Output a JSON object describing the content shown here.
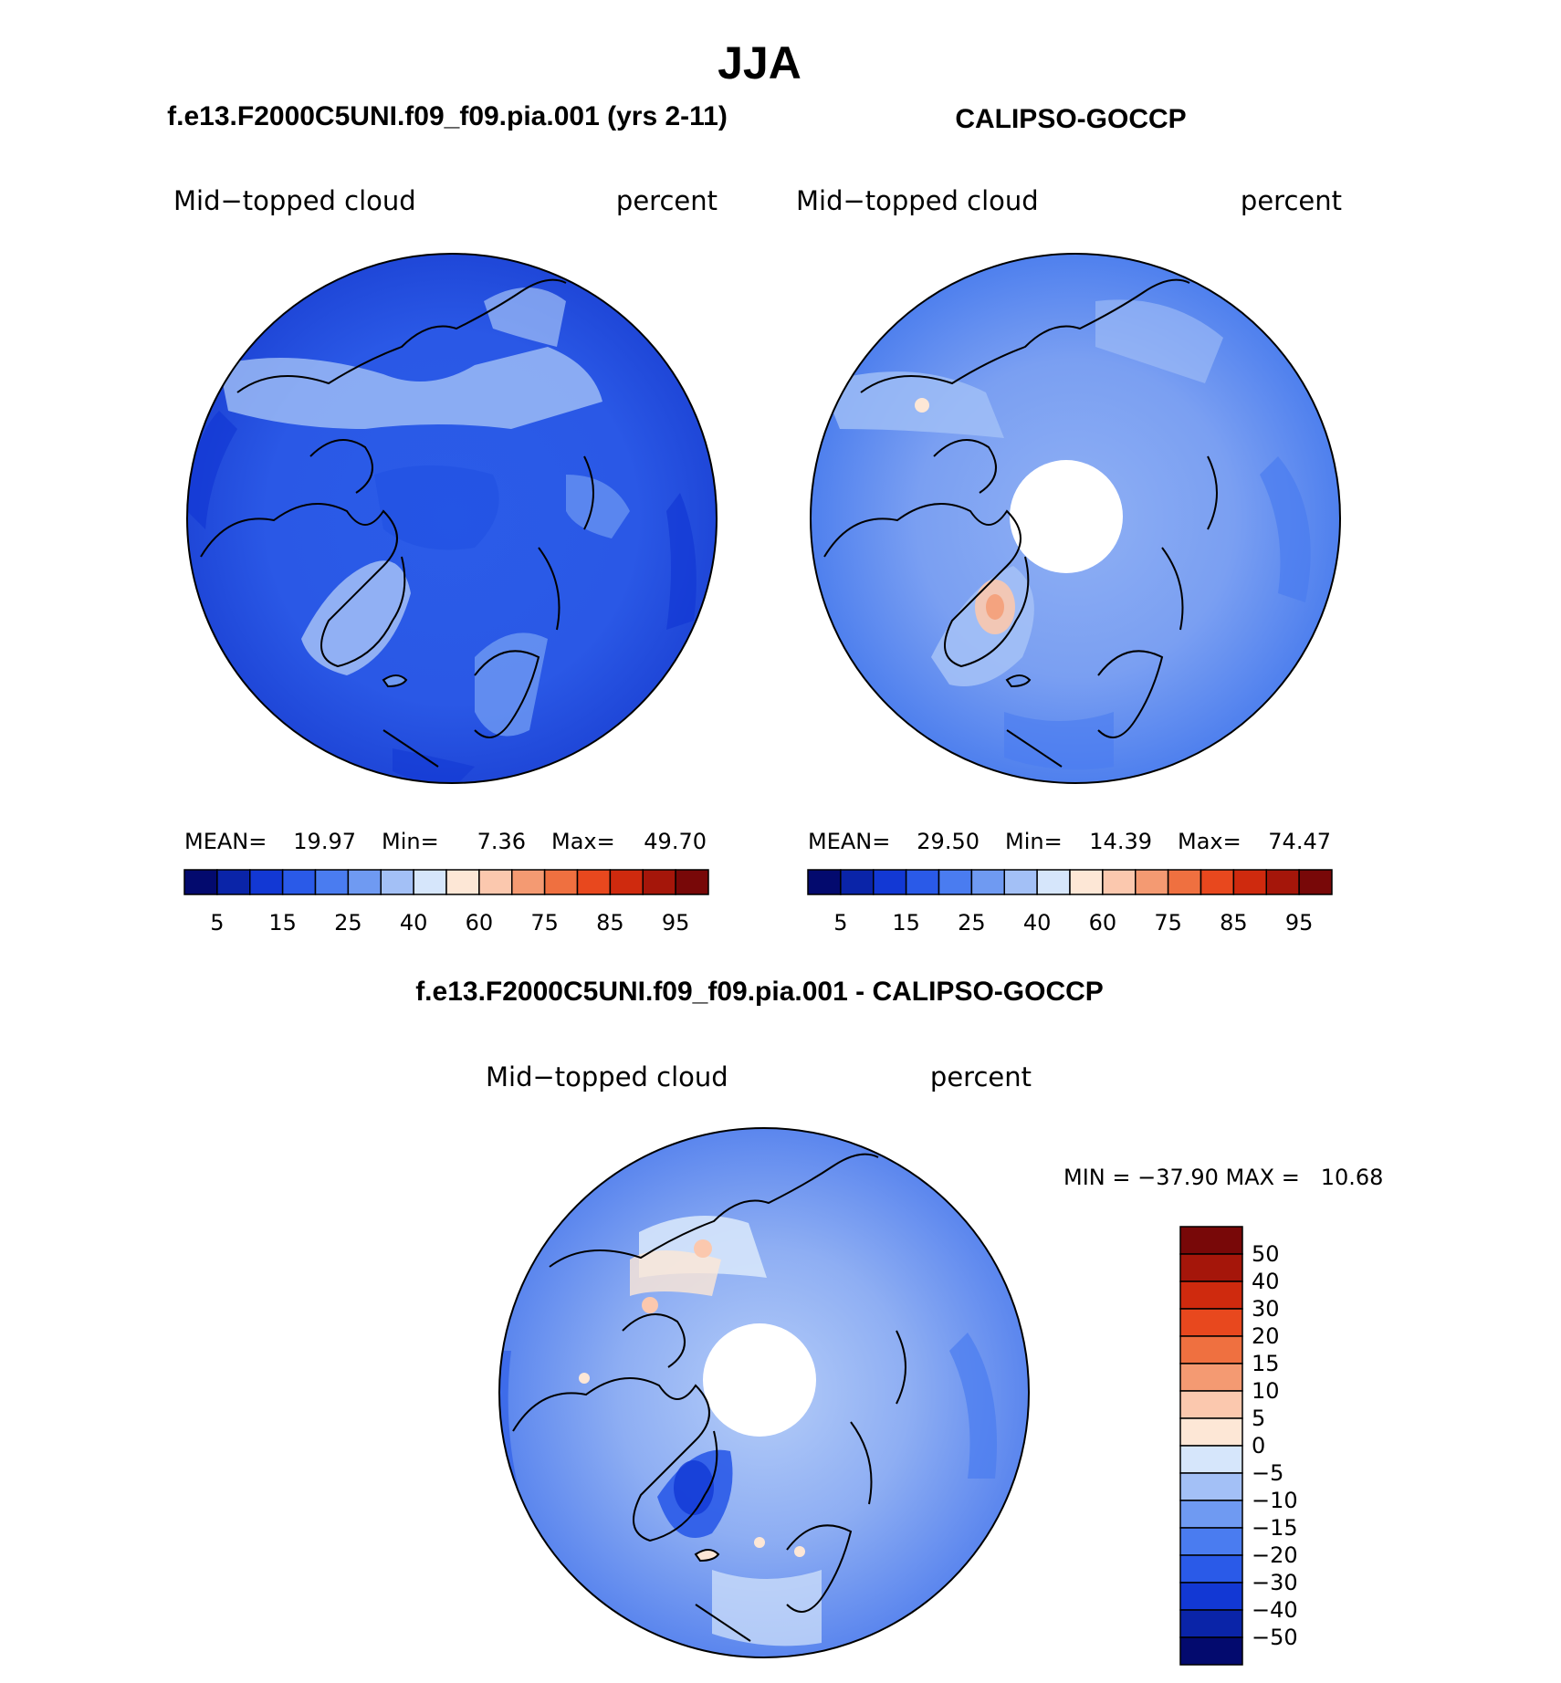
{
  "title": "JJA",
  "panel_left": {
    "heading": "f.e13.F2000C5UNI.f09_f09.pia.001 (yrs 2-11)",
    "variable": "Mid−topped cloud",
    "units": "percent",
    "stats": {
      "mean_label": "MEAN=",
      "mean": "19.97",
      "min_label": "Min=",
      "min": "7.36",
      "max_label": "Max=",
      "max": "49.70"
    }
  },
  "panel_right": {
    "heading": "CALIPSO-GOCCP",
    "variable": "Mid−topped cloud",
    "units": "percent",
    "stats": {
      "mean_label": "MEAN=",
      "mean": "29.50",
      "min_label": "Min=",
      "min": "14.39",
      "max_label": "Max=",
      "max": "74.47"
    }
  },
  "panel_diff": {
    "heading": "f.e13.F2000C5UNI.f09_f09.pia.001 - CALIPSO-GOCCP",
    "variable": "Mid−topped cloud",
    "units": "percent",
    "minmax": "MIN = −37.90 MAX =   10.68"
  },
  "colorbar_abs": {
    "colors": [
      "#030a6e",
      "#0a24a8",
      "#1238d4",
      "#2a5ae8",
      "#4a7cf0",
      "#6f9af2",
      "#a3c0f6",
      "#d6e6fb",
      "#fde7d6",
      "#fbc8ae",
      "#f49a72",
      "#ef7040",
      "#e8481e",
      "#cf2a0e",
      "#a5160a",
      "#780808"
    ],
    "labels": [
      "5",
      "15",
      "25",
      "40",
      "60",
      "75",
      "85",
      "95"
    ]
  },
  "colorbar_diff": {
    "colors": [
      "#030a6e",
      "#0a24a8",
      "#1238d4",
      "#2a5ae8",
      "#4a7cf0",
      "#6f9af2",
      "#a3c0f6",
      "#d6e6fb",
      "#fde7d6",
      "#fbc8ae",
      "#f49a72",
      "#ef7040",
      "#e8481e",
      "#cf2a0e",
      "#a5160a",
      "#780808"
    ],
    "labels": [
      "50",
      "40",
      "30",
      "20",
      "15",
      "10",
      "5",
      "0",
      "−5",
      "−10",
      "−15",
      "−20",
      "−30",
      "−40",
      "−50"
    ]
  }
}
